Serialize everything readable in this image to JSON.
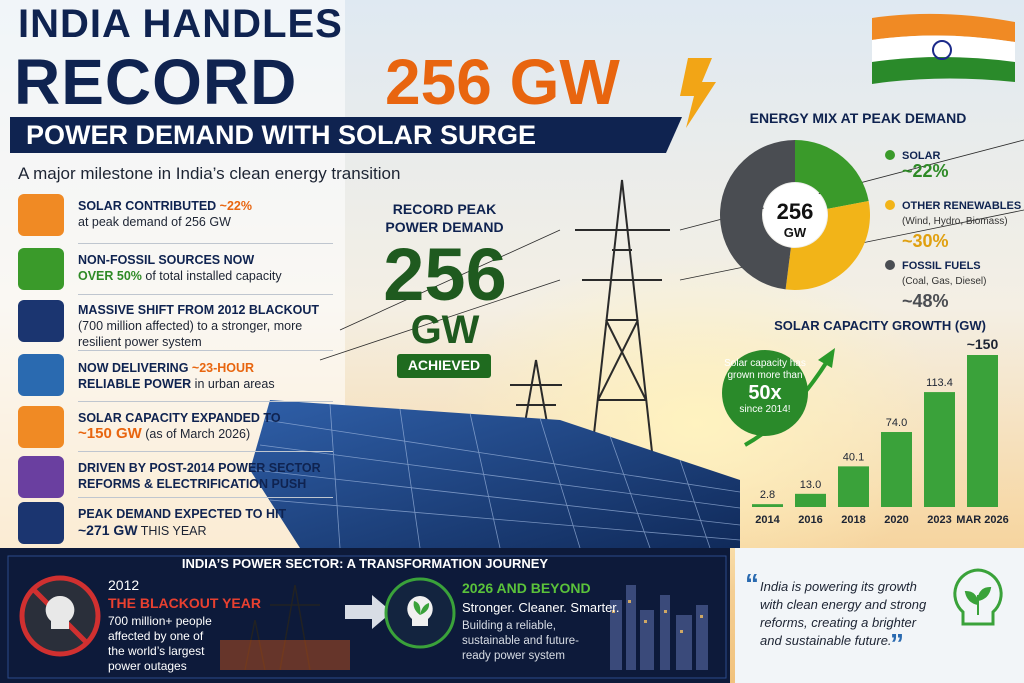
{
  "header": {
    "line1": "INDIA HANDLES",
    "line2a": "RECORD",
    "line2b": "256 GW",
    "banner": "POWER DEMAND WITH SOLAR SURGE",
    "subtitle": "A major milestone in India’s clean energy transition"
  },
  "facts": [
    [
      "SOLAR CONTRIBUTED ",
      "~22%",
      "at peak demand of 256 GW"
    ],
    [
      "NON-FOSSIL SOURCES NOW",
      "OVER 50%",
      " of total installed capacity"
    ],
    [
      "MASSIVE SHIFT FROM 2012 BLACKOUT",
      "(700 million affected) to a stronger, more resilient power system"
    ],
    [
      "NOW DELIVERING ",
      "~23-HOUR",
      "RELIABLE POWER",
      " in urban areas"
    ],
    [
      "SOLAR CAPACITY EXPANDED TO",
      "~150 GW",
      " (as of March 2026)"
    ],
    [
      "DRIVEN BY POST-2014 POWER SECTOR REFORMS & ELECTRIFICATION PUSH"
    ],
    [
      "PEAK DEMAND EXPECTED TO HIT",
      "~271 GW",
      " THIS YEAR"
    ]
  ],
  "center": {
    "label": "RECORD PEAK POWER DEMAND",
    "number": "256",
    "unit": "GW",
    "badge": "ACHIEVED"
  },
  "chart_data": [
    {
      "type": "pie",
      "title": "ENERGY MIX AT PEAK DEMAND",
      "center": [
        "256",
        "GW"
      ],
      "categories": [
        "SOLAR",
        "OTHER RENEWABLES",
        "FOSSIL FUELS"
      ],
      "notes": [
        null,
        "(Wind, Hydro, Biomass)",
        "(Coal, Gas, Diesel)"
      ],
      "values": [
        22,
        30,
        48
      ],
      "value_labels": [
        "~22%",
        "~30%",
        "~48%"
      ],
      "colors": [
        "#3a9a2a",
        "#f2b418",
        "#4a4d52"
      ]
    },
    {
      "type": "bar",
      "title": "SOLAR CAPACITY GROWTH (GW)",
      "categories": [
        "2014",
        "2016",
        "2018",
        "2020",
        "2023",
        "MAR 2026"
      ],
      "values": [
        2.8,
        13.0,
        40.1,
        74.0,
        113.4,
        150
      ],
      "value_labels": [
        "2.8",
        "13.0",
        "40.1",
        "74.0",
        "113.4",
        "~150"
      ],
      "color": "#3aa23a",
      "annotation": [
        "Solar capacity has grown more than",
        "50x",
        "since 2014!"
      ]
    }
  ],
  "journey": {
    "title": "INDIA’S POWER SECTOR: A TRANSFORMATION JOURNEY",
    "past_year": "2012",
    "past_title": "THE BLACKOUT YEAR",
    "past_text": "700 million+ people affected by one of the world’s largest power outages",
    "future_title": "2026 AND BEYOND",
    "future_tagline": "Stronger. Cleaner. Smarter.",
    "future_text": "Building a reliable, sustainable and future-ready power system"
  },
  "quote": {
    "open": "“",
    "text": "India is powering its growth with clean energy and strong reforms, creating a brighter and sustainable future.",
    "close": "”"
  }
}
